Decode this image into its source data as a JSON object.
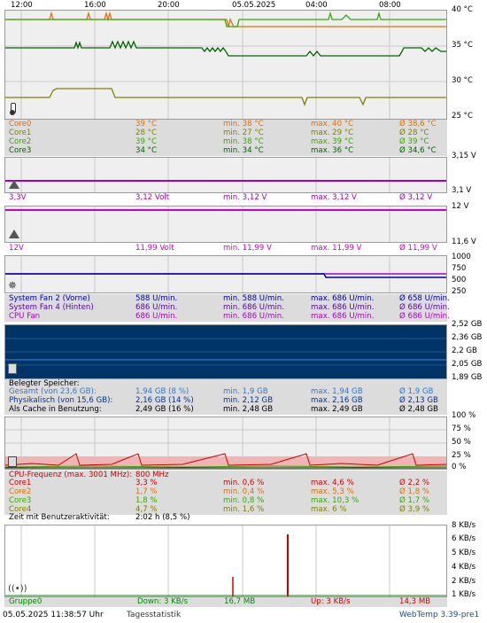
{
  "time_axis": [
    "12:00",
    "16:00",
    "20:00",
    "05.05.2025",
    "04:00",
    "08:00"
  ],
  "temp": {
    "axis": [
      "40 °C",
      "35 °C",
      "30 °C",
      "25 °C"
    ],
    "rows": [
      {
        "name": "Core0",
        "cur": "39 °C",
        "min": "min. 38 °C",
        "max": "max. 40 °C",
        "avg": "Ø 38,6 °C",
        "color": "#e07000"
      },
      {
        "name": "Core1",
        "cur": "28 °C",
        "min": "min. 27 °C",
        "max": "max. 29 °C",
        "avg": "Ø 28 °C",
        "color": "#808000"
      },
      {
        "name": "Core2",
        "cur": "39 °C",
        "min": "min. 38 °C",
        "max": "max. 39 °C",
        "avg": "Ø 39 °C",
        "color": "#33aa00"
      },
      {
        "name": "Core3",
        "cur": "34 °C",
        "min": "min. 34 °C",
        "max": "max. 36 °C",
        "avg": "Ø 34,6 °C",
        "color": "#006600"
      }
    ]
  },
  "v33": {
    "axis": [
      "3,15 V",
      "3,1 V"
    ],
    "row": {
      "name": "3,3V",
      "cur": "3,12 Volt",
      "min": "min. 3,12 V",
      "max": "max. 3,12 V",
      "avg": "Ø 3,12 V",
      "color": "#9900cc"
    }
  },
  "v12": {
    "axis": [
      "12 V",
      "11,6 V"
    ],
    "row": {
      "name": "12V",
      "cur": "11,99 Volt",
      "min": "min. 11,99 V",
      "max": "max. 11,99 V",
      "avg": "Ø 11,99 V",
      "color": "#cc00cc"
    }
  },
  "fan": {
    "axis": [
      "1000",
      "750",
      "500",
      "250"
    ],
    "rows": [
      {
        "name": "System Fan 2 (Vorne)",
        "cur": "588 U/min.",
        "min": "min. 588 U/min.",
        "max": "max. 686 U/min.",
        "avg": "Ø 658 U/min.",
        "color": "#0000aa"
      },
      {
        "name": "System Fan 4 (Hinten)",
        "cur": "686 U/min.",
        "min": "min. 686 U/min.",
        "max": "max. 686 U/min.",
        "avg": "Ø 686 U/min.",
        "color": "#5500aa"
      },
      {
        "name": "CPU Fan",
        "cur": "686 U/min.",
        "min": "min. 686 U/min.",
        "max": "max. 686 U/min.",
        "avg": "Ø 686 U/min.",
        "color": "#aa00cc"
      }
    ]
  },
  "mem": {
    "axis": [
      "2,52 GB",
      "2,36 GB",
      "2,2 GB",
      "2,05 GB",
      "1,89 GB"
    ],
    "header": "Belegter Speicher:",
    "rows": [
      {
        "name": "Gesamt (von 23,6 GB):",
        "cur": "1,94 GB (8 %)",
        "min": "min. 1,9 GB",
        "max": "max. 1,94 GB",
        "avg": "Ø 1,9 GB",
        "color": "#3377cc"
      },
      {
        "name": "Physikalisch (von 15,6 GB):",
        "cur": "2,16 GB (14 %)",
        "min": "min. 2,12 GB",
        "max": "max. 2,16 GB",
        "avg": "Ø 2,13 GB",
        "color": "#003399"
      },
      {
        "name": "Als Cache in Benutzung:",
        "cur": "2,49 GB (16 %)",
        "min": "min. 2,48 GB",
        "max": "max. 2,49 GB",
        "avg": "Ø 2,48 GB",
        "color": "#000000"
      }
    ]
  },
  "cpu": {
    "axis": [
      "100 %",
      "75 %",
      "50 %",
      "25 %",
      "0 %"
    ],
    "freq_label": "CPU-Frequenz (max. 3001 MHz):",
    "freq_value": "800 MHz",
    "rows": [
      {
        "name": "Core1",
        "cur": "3,3 %",
        "min": "min. 0,6 %",
        "max": "max. 4,6 %",
        "avg": "Ø 2,2 %",
        "color": "#cc0000"
      },
      {
        "name": "Core2",
        "cur": "1,7 %",
        "min": "min. 0,4 %",
        "max": "max. 5,3 %",
        "avg": "Ø 1,8 %",
        "color": "#e07000"
      },
      {
        "name": "Core3",
        "cur": "1,8 %",
        "min": "min. 0,8 %",
        "max": "max. 10,3 %",
        "avg": "Ø 1,7 %",
        "color": "#33aa00"
      },
      {
        "name": "Core4",
        "cur": "4,7 %",
        "min": "min. 1,6 %",
        "max": "max. 6 %",
        "avg": "Ø 3,9 %",
        "color": "#808000"
      }
    ],
    "activity_label": "Zeit mit Benutzeraktivität:",
    "activity_value": "2:02 h (8,5 %)"
  },
  "net": {
    "axis": [
      "8 KB/s",
      "6 KB/s",
      "5 KB/s",
      "4 KB/s",
      "3 KB/s",
      "2 KB/s",
      "1 KB/s"
    ],
    "group": "Gruppe0",
    "down": "Down: 3 KB/s",
    "down_total": "16,7 MB",
    "up": "Up: 3 KB/s",
    "up_total": "14,3 MB"
  },
  "footer": {
    "datetime": "05.05.2025 11:38:57 Uhr",
    "stats": "Tagesstatistik",
    "version": "WebTemp 3.39-pre1"
  }
}
